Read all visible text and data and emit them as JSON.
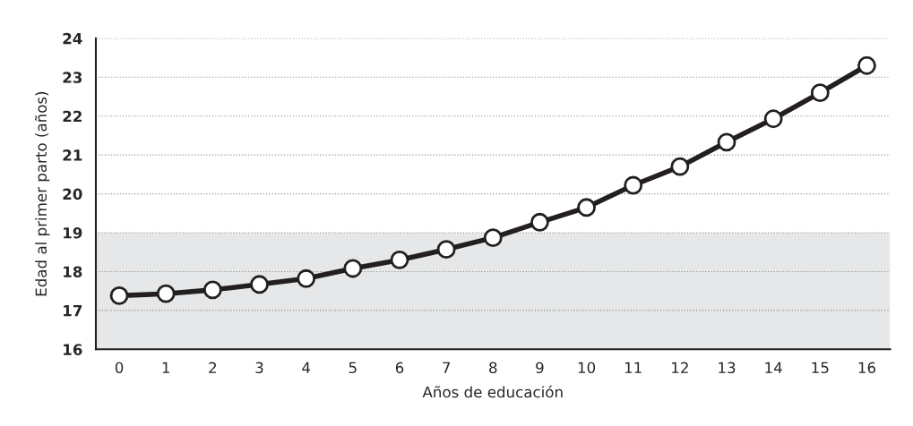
{
  "chart_data": {
    "type": "line",
    "xlabel": "Años de educación",
    "ylabel": "Edad al primer parto (años)",
    "categories": [
      "0",
      "1",
      "2",
      "3",
      "4",
      "5",
      "6",
      "7",
      "8",
      "9",
      "10",
      "11",
      "12",
      "13",
      "14",
      "15",
      "16"
    ],
    "series": [
      {
        "color": "#231f20",
        "values": [
          17.38,
          17.43,
          17.53,
          17.67,
          17.82,
          18.08,
          18.3,
          18.57,
          18.87,
          19.27,
          19.65,
          20.22,
          20.7,
          21.33,
          21.93,
          22.6,
          23.3
        ]
      }
    ],
    "ylim": [
      16,
      24
    ],
    "yticks": [
      16,
      17,
      18,
      19,
      20,
      21,
      22,
      23,
      24
    ],
    "bands": [
      {
        "axis": "y",
        "from": 16,
        "to": 19,
        "color": "#e6e7e8"
      }
    ],
    "grid": "y",
    "marker": "circle",
    "line_style": "solid",
    "legend": false
  }
}
